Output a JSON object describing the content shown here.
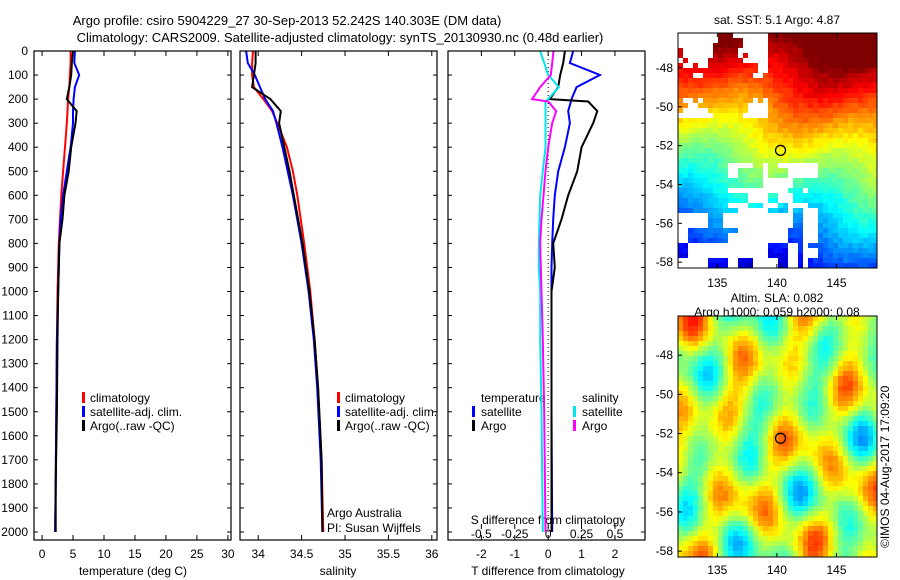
{
  "title": {
    "line1": "Argo profile: csiro 5904229_27 30-Sep-2013 52.242S 140.303E (DM data)",
    "line2": "Climatology: CARS2009. Satellite-adjusted climatology: synTS_20130930.nc (0.48d earlier)"
  },
  "credit": "©IMOS 04-Aug-2017 17:09:20",
  "annotations": {
    "line1": "Argo Australia",
    "line2": "PI: Susan Wijffels"
  },
  "colors": {
    "climatology": "#ff0000",
    "satellite": "#0000ff",
    "argo": "#000000",
    "sal_satellite": "#00e5ee",
    "sal_argo": "#ff00ff"
  },
  "chart_data": [
    {
      "type": "line",
      "name": "temperature profile",
      "xlabel": "temperature (deg C)",
      "ylabel": "depth",
      "xlim": [
        -1.3,
        30.5
      ],
      "ylim": [
        2033,
        0
      ],
      "xticks": [
        "0",
        "5",
        "10",
        "15",
        "20",
        "25",
        "30"
      ],
      "xtick_values": [
        0,
        5,
        10,
        15,
        20,
        25,
        30
      ],
      "yticks": [
        "0",
        "100",
        "200",
        "300",
        "400",
        "500",
        "600",
        "700",
        "800",
        "900",
        "1000",
        "1100",
        "1200",
        "1300",
        "1400",
        "1500",
        "1600",
        "1700",
        "1800",
        "1900",
        "2000"
      ],
      "ytick_values": [
        0,
        100,
        200,
        300,
        400,
        500,
        600,
        700,
        800,
        900,
        1000,
        1100,
        1200,
        1300,
        1400,
        1500,
        1600,
        1700,
        1800,
        1900,
        2000
      ],
      "legend": [
        "climatology",
        "satellite-adj. clim.",
        "Argo(..raw -QC)"
      ],
      "legend_position": "lower-center",
      "depth": [
        0,
        50,
        100,
        150,
        200,
        250,
        300,
        400,
        500,
        600,
        700,
        800,
        1000,
        1200,
        1500,
        1800,
        2000
      ],
      "series": [
        {
          "name": "climatology",
          "color": "#ff0000",
          "values": [
            4.6,
            4.6,
            4.5,
            4.4,
            4.2,
            4.1,
            4.0,
            3.7,
            3.4,
            3.1,
            2.9,
            2.7,
            2.5,
            2.4,
            2.3,
            2.2,
            2.1
          ]
        },
        {
          "name": "satellite-adj. clim.",
          "color": "#0000ff",
          "values": [
            5.3,
            5.2,
            6.0,
            5.3,
            5.1,
            5.0,
            5.0,
            4.6,
            4.0,
            3.4,
            3.0,
            2.8,
            2.6,
            2.4,
            2.3,
            2.2,
            2.1
          ]
        },
        {
          "name": "Argo(..raw -QC)",
          "color": "#000000",
          "values": [
            5.0,
            4.8,
            4.7,
            4.4,
            4.0,
            5.6,
            5.4,
            4.7,
            4.3,
            3.6,
            3.3,
            2.8,
            2.6,
            2.5,
            2.4,
            2.2,
            2.2
          ]
        }
      ]
    },
    {
      "type": "line",
      "name": "salinity profile",
      "xlabel": "salinity",
      "xlim": [
        33.79,
        36.06
      ],
      "ylim": [
        2033,
        0
      ],
      "xticks": [
        "34",
        "34.5",
        "35",
        "35.5",
        "36"
      ],
      "xtick_values": [
        34,
        34.5,
        35,
        35.5,
        36
      ],
      "legend": [
        "climatology",
        "satellite-adj. clim.",
        "Argo(..raw -QC)"
      ],
      "legend_position": "lower-right",
      "depth": [
        0,
        50,
        100,
        150,
        200,
        250,
        300,
        400,
        500,
        600,
        800,
        1000,
        1200,
        1400,
        1700,
        2000
      ],
      "series": [
        {
          "name": "climatology",
          "color": "#ff0000",
          "values": [
            33.94,
            33.93,
            33.93,
            33.95,
            34.06,
            34.16,
            34.22,
            34.33,
            34.4,
            34.45,
            34.53,
            34.6,
            34.65,
            34.69,
            34.73,
            34.75
          ]
        },
        {
          "name": "satellite-adj. clim.",
          "color": "#0000ff",
          "values": [
            33.86,
            33.88,
            33.96,
            34.02,
            34.08,
            34.17,
            34.21,
            34.28,
            34.34,
            34.4,
            34.5,
            34.58,
            34.64,
            34.68,
            34.72,
            34.74
          ]
        },
        {
          "name": "Argo(..raw -QC)",
          "color": "#000000",
          "values": [
            33.97,
            33.97,
            33.95,
            33.93,
            34.14,
            34.26,
            34.24,
            34.3,
            34.36,
            34.41,
            34.51,
            34.59,
            34.65,
            34.69,
            34.73,
            34.74
          ]
        }
      ]
    },
    {
      "type": "line",
      "name": "difference from climatology",
      "xlabel": "T difference from climatology",
      "x2label": "S difference from climatology",
      "xlim": [
        -3,
        2.9
      ],
      "ylim": [
        2033,
        0
      ],
      "xticks": [
        "-2",
        "-1",
        "0",
        "1",
        "2"
      ],
      "xtick_values": [
        -2,
        -1,
        0,
        1,
        2
      ],
      "x2ticks": [
        "-0.5",
        "-0.25",
        "0",
        "0.25",
        "0.5"
      ],
      "x2tick_values": [
        -0.5,
        -0.25,
        0,
        0.25,
        0.5
      ],
      "legend_headers": [
        "temperature",
        "salinity"
      ],
      "legend": [
        "satellite",
        "Argo",
        "satellite",
        "Argo"
      ],
      "legend_position": "lower-center",
      "depth": [
        0,
        50,
        100,
        150,
        200,
        210,
        250,
        300,
        400,
        500,
        600,
        700,
        800,
        900,
        1000,
        1200,
        1500,
        2000
      ],
      "series": [
        {
          "name": "temperature satellite",
          "axis": "T",
          "color": "#0000ff",
          "values": [
            0.75,
            0.65,
            1.55,
            0.85,
            0.7,
            0.68,
            0.6,
            0.65,
            0.5,
            0.3,
            0.2,
            0.15,
            0.12,
            0.1,
            0.1,
            0.1,
            0.1,
            0.12
          ]
        },
        {
          "name": "temperature Argo",
          "axis": "T",
          "color": "#000000",
          "values": [
            0.5,
            0.45,
            0.36,
            0.3,
            0.05,
            1.2,
            1.47,
            1.35,
            1.0,
            0.87,
            0.6,
            0.4,
            0.15,
            0.2,
            0.1,
            0.1,
            0.1,
            0.1
          ]
        },
        {
          "name": "salinity satellite",
          "axis": "S",
          "color": "#00e5ee",
          "values": [
            -0.06,
            -0.03,
            0.0,
            0.08,
            0.0,
            -0.02,
            -0.02,
            -0.02,
            -0.02,
            -0.04,
            -0.06,
            -0.065,
            -0.07,
            -0.07,
            -0.06,
            -0.06,
            -0.05,
            -0.04
          ]
        },
        {
          "name": "salinity Argo",
          "axis": "S",
          "color": "#ff00ff",
          "values": [
            0.04,
            0.03,
            0.02,
            -0.06,
            -0.12,
            0.0,
            0.06,
            0.03,
            0.0,
            -0.02,
            -0.035,
            -0.05,
            -0.06,
            -0.055,
            -0.05,
            -0.04,
            -0.03,
            -0.02
          ]
        }
      ]
    },
    {
      "type": "heatmap",
      "name": "satellite SST map",
      "title": "sat. SST: 5.1 Argo: 4.87",
      "xlim": [
        131.7,
        148.4
      ],
      "ylim": [
        -58.3,
        -46.2
      ],
      "xticks": [
        "135",
        "140",
        "145"
      ],
      "xtick_values": [
        135,
        140,
        145
      ],
      "yticks": [
        "-48",
        "-50",
        "-52",
        "-54",
        "-56",
        "-58"
      ],
      "ytick_values": [
        -48,
        -50,
        -52,
        -54,
        -56,
        -58
      ],
      "marker": {
        "lon": 140.303,
        "lat": -52.242
      }
    },
    {
      "type": "heatmap",
      "name": "altimetry SLA map",
      "title": "Altim. SLA: 0.082",
      "subtitle": "Argo h1000: 0.059 h2000: 0.08",
      "xlim": [
        131.7,
        148.4
      ],
      "ylim": [
        -58.3,
        -46.0
      ],
      "xticks": [
        "135",
        "140",
        "145"
      ],
      "xtick_values": [
        135,
        140,
        145
      ],
      "yticks": [
        "-48",
        "-50",
        "-52",
        "-54",
        "-56",
        "-58"
      ],
      "ytick_values": [
        -48,
        -50,
        -52,
        -54,
        -56,
        -58
      ],
      "marker": {
        "lon": 140.303,
        "lat": -52.242
      }
    }
  ]
}
